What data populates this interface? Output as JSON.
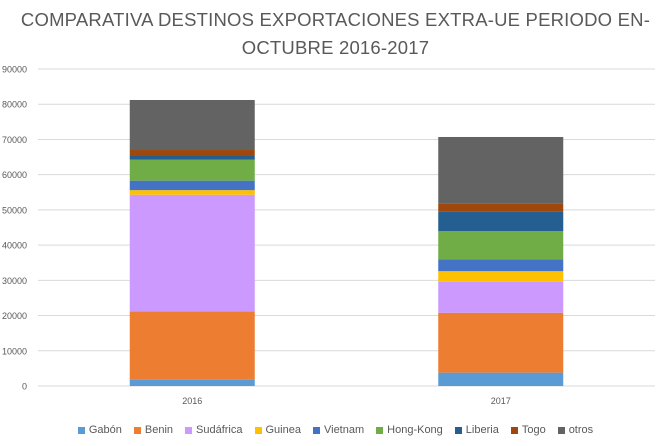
{
  "chart_data": {
    "type": "bar",
    "stacked": true,
    "title_lines": [
      "COMPARATIVA DESTINOS EXPORTACIONES EXTRA-UE PERIODO EN-",
      "OCTUBRE 2016-2017"
    ],
    "categories": [
      "2016",
      "2017"
    ],
    "ylim": [
      0,
      90000
    ],
    "yticks": [
      "0",
      "10000",
      "20000",
      "30000",
      "40000",
      "50000",
      "60000",
      "70000",
      "80000",
      "90000"
    ],
    "grid": true,
    "legend_position": "bottom",
    "series": [
      {
        "name": "Gabón",
        "color": "#5B9BD5",
        "values": [
          1800,
          3800
        ]
      },
      {
        "name": "Benin",
        "color": "#ED7D31",
        "values": [
          19400,
          17000
        ]
      },
      {
        "name": "Sudáfrica",
        "color": "#CC99FF",
        "values": [
          33100,
          8800
        ]
      },
      {
        "name": "Guinea",
        "color": "#FFC000",
        "values": [
          1300,
          3000
        ]
      },
      {
        "name": "Vietnam",
        "color": "#4472C4",
        "values": [
          2700,
          3400
        ]
      },
      {
        "name": "Hong-Kong",
        "color": "#70AD47",
        "values": [
          6000,
          8000
        ]
      },
      {
        "name": "Liberia",
        "color": "#255E91",
        "values": [
          1000,
          5600
        ]
      },
      {
        "name": "Togo",
        "color": "#9E480E",
        "values": [
          1700,
          2100
        ]
      },
      {
        "name": "otros",
        "color": "#636363",
        "values": [
          14200,
          19000
        ]
      }
    ]
  }
}
